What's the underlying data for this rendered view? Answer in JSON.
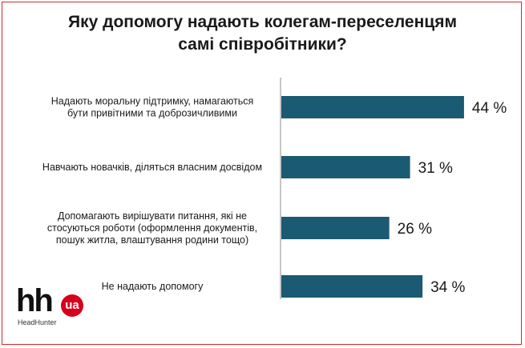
{
  "chart_data": {
    "type": "bar",
    "orientation": "horizontal",
    "title_lines": [
      "Яку допомогу надають колегам-переселенцям",
      "самі співробітники?"
    ],
    "categories": [
      [
        "Надають моральну підтримку, намагаються",
        "бути привітними та доброзичливими"
      ],
      [
        "Навчають новачків, діляться власним досвідом"
      ],
      [
        "Допомагають вирішувати питання, які не",
        "стосуються роботи (оформлення документів,",
        "пошук житла, влаштування родини тощо)"
      ],
      [
        "Не надають допомогу"
      ]
    ],
    "values": [
      44,
      31,
      26,
      34
    ],
    "value_labels": [
      "44 %",
      "31 %",
      "26 %",
      "34 %"
    ],
    "xlim": [
      0,
      50
    ],
    "grid": false,
    "legend": "none",
    "bar_color": "#1a5a73"
  },
  "logo": {
    "hh": "hh",
    "ua": "ua",
    "sub": "HeadHunter"
  },
  "colors": {
    "frame": "#d22b2b",
    "bar": "#1a5a73",
    "text": "#1a1a1a"
  }
}
